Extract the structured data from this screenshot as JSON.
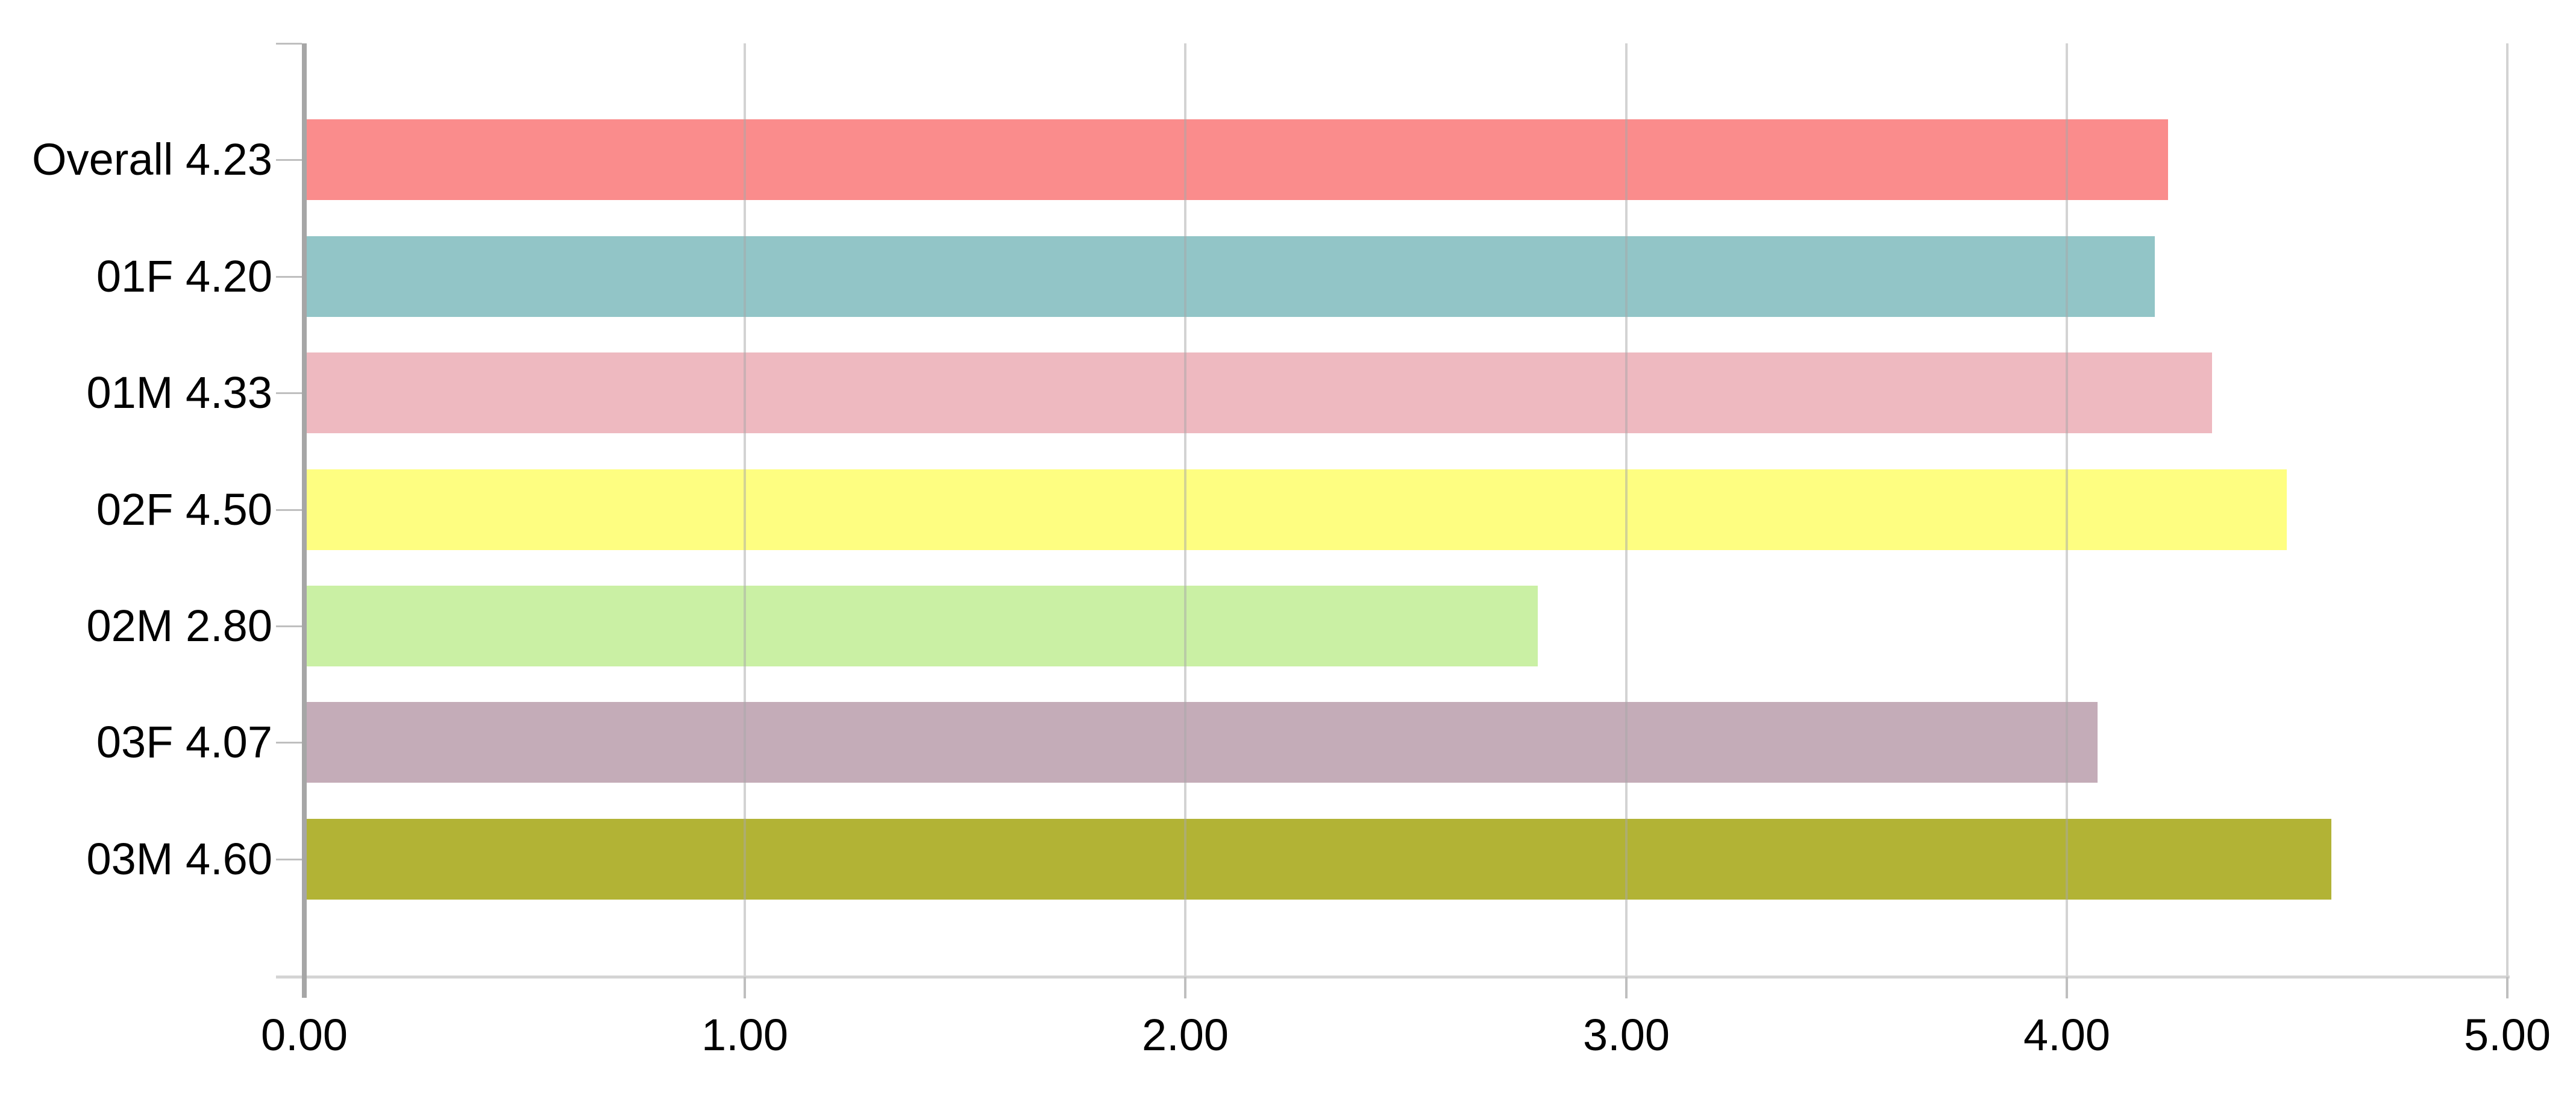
{
  "chart": {
    "background_color": "#FFFFFF",
    "axis_line_color": "#A6A6A6",
    "gridline_color": "#D2D2D2",
    "tick_mark_color": "#BFBFBF",
    "label_text_color": "#000000"
  },
  "chart_data": {
    "type": "bar",
    "orientation": "horizontal",
    "title": "",
    "xlabel": "",
    "ylabel": "",
    "xlim": [
      0,
      5
    ],
    "x_ticks": [
      0,
      1,
      2,
      3,
      4,
      5
    ],
    "x_tick_labels": [
      "0.00",
      "1.00",
      "2.00",
      "3.00",
      "4.00",
      "5.00"
    ],
    "grid": "vertical gridlines on",
    "legend_position": "none",
    "categories": [
      "Overall",
      "01F",
      "01M",
      "02F",
      "02M",
      "03F",
      "03M"
    ],
    "values": [
      4.23,
      4.2,
      4.33,
      4.5,
      2.8,
      4.07,
      4.6
    ],
    "bar_labels": [
      "Overall 4.23",
      "01F 4.20",
      "01M 4.33",
      "02F 4.50",
      "02M 2.80",
      "03F 4.07",
      "03M 4.60"
    ],
    "bar_colors": [
      "#FA8C8C",
      "#92C5C7",
      "#EEB9C0",
      "#FEFE81",
      "#CAF0A4",
      "#C4ACB8",
      "#B2B335"
    ]
  }
}
